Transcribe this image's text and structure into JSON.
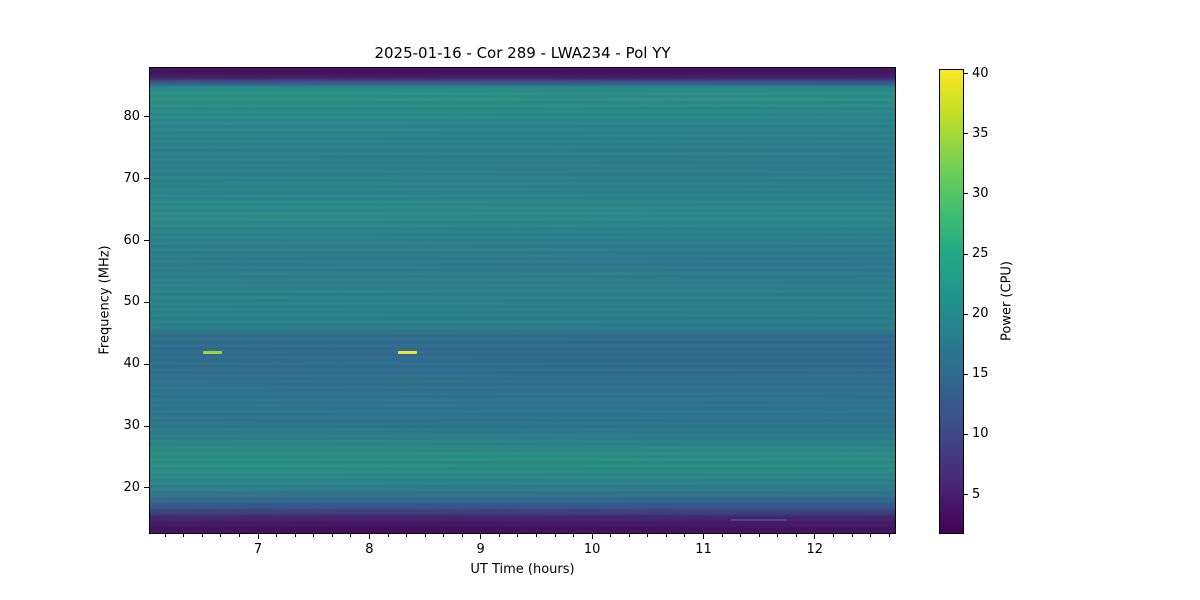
{
  "figure": {
    "title": "2025-01-16 - Cor 289 - LWA234 - Pol YY",
    "xlabel": "UT Time (hours)",
    "ylabel": "Frequency (MHz)",
    "colorbar_label": "Power (CPU)"
  },
  "chart_data": {
    "type": "heatmap",
    "title": "2025-01-16 - Cor 289 - LWA234 - Pol YY",
    "xlabel": "UT Time (hours)",
    "ylabel": "Frequency (MHz)",
    "colormap": "viridis",
    "x_range_hours": [
      6.03,
      12.72
    ],
    "y_range_mhz": [
      12.7,
      87.9
    ],
    "x_ticks": [
      7,
      8,
      9,
      10,
      11,
      12
    ],
    "x_minor_tick_interval_hours": 0.16667,
    "y_ticks": [
      20,
      30,
      40,
      50,
      60,
      70,
      80
    ],
    "grid": false,
    "colorbar": {
      "label": "Power (CPU)",
      "range": [
        1.8,
        40.3
      ],
      "ticks": [
        5,
        10,
        15,
        20,
        25,
        30,
        35,
        40
      ]
    },
    "colormap_stops": [
      {
        "t": 0.0,
        "c": "#440154"
      },
      {
        "t": 0.1,
        "c": "#482475"
      },
      {
        "t": 0.2,
        "c": "#414487"
      },
      {
        "t": 0.3,
        "c": "#355f8d"
      },
      {
        "t": 0.4,
        "c": "#2a788e"
      },
      {
        "t": 0.5,
        "c": "#21918c"
      },
      {
        "t": 0.6,
        "c": "#22a884"
      },
      {
        "t": 0.7,
        "c": "#44bf70"
      },
      {
        "t": 0.8,
        "c": "#7ad151"
      },
      {
        "t": 0.9,
        "c": "#bddf26"
      },
      {
        "t": 1.0,
        "c": "#fde725"
      }
    ],
    "frequency_profile": [
      {
        "freq_mhz": 87.9,
        "power": 2.2,
        "color": "#440b5c"
      },
      {
        "freq_mhz": 86.6,
        "power": 2.6,
        "color": "#461360"
      },
      {
        "freq_mhz": 85.9,
        "power": 6.5,
        "color": "#423c80"
      },
      {
        "freq_mhz": 85.2,
        "power": 15.0,
        "color": "#2f6f8e"
      },
      {
        "freq_mhz": 84.4,
        "power": 22.0,
        "color": "#2a9185"
      },
      {
        "freq_mhz": 82.6,
        "power": 21.6,
        "color": "#2b9085"
      },
      {
        "freq_mhz": 81.0,
        "power": 20.5,
        "color": "#2b8a88"
      },
      {
        "freq_mhz": 79.5,
        "power": 20.0,
        "color": "#2b8689"
      },
      {
        "freq_mhz": 76.5,
        "power": 19.4,
        "color": "#2c818b"
      },
      {
        "freq_mhz": 72.5,
        "power": 19.0,
        "color": "#2c7e8b"
      },
      {
        "freq_mhz": 68.0,
        "power": 19.6,
        "color": "#2c828a"
      },
      {
        "freq_mhz": 64.0,
        "power": 20.4,
        "color": "#2b8a87"
      },
      {
        "freq_mhz": 60.5,
        "power": 19.3,
        "color": "#2c808b"
      },
      {
        "freq_mhz": 56.0,
        "power": 18.8,
        "color": "#2d7b8c"
      },
      {
        "freq_mhz": 52.0,
        "power": 19.4,
        "color": "#2c818a"
      },
      {
        "freq_mhz": 48.5,
        "power": 19.2,
        "color": "#2b808a"
      },
      {
        "freq_mhz": 45.6,
        "power": 19.0,
        "color": "#2b7e89"
      },
      {
        "freq_mhz": 44.8,
        "power": 15.8,
        "color": "#2f6d8d"
      },
      {
        "freq_mhz": 42.0,
        "power": 15.2,
        "color": "#306a8e"
      },
      {
        "freq_mhz": 38.0,
        "power": 15.9,
        "color": "#2f6e8d"
      },
      {
        "freq_mhz": 33.5,
        "power": 16.8,
        "color": "#2e748c"
      },
      {
        "freq_mhz": 30.0,
        "power": 17.1,
        "color": "#2e768c"
      },
      {
        "freq_mhz": 27.2,
        "power": 19.8,
        "color": "#2b8386"
      },
      {
        "freq_mhz": 25.2,
        "power": 21.5,
        "color": "#2a8e84"
      },
      {
        "freq_mhz": 23.0,
        "power": 21.7,
        "color": "#2b8e85"
      },
      {
        "freq_mhz": 21.2,
        "power": 19.9,
        "color": "#2c8389"
      },
      {
        "freq_mhz": 20.0,
        "power": 18.9,
        "color": "#2d7f8a"
      },
      {
        "freq_mhz": 18.6,
        "power": 16.3,
        "color": "#30718d"
      },
      {
        "freq_mhz": 17.2,
        "power": 12.8,
        "color": "#345a8c"
      },
      {
        "freq_mhz": 16.1,
        "power": 8.0,
        "color": "#3c3e7c"
      },
      {
        "freq_mhz": 15.1,
        "power": 4.6,
        "color": "#44206a"
      },
      {
        "freq_mhz": 13.8,
        "power": 2.6,
        "color": "#450f5f"
      },
      {
        "freq_mhz": 12.7,
        "power": 2.2,
        "color": "#440a5c"
      }
    ],
    "bursts": [
      {
        "time_hours": 6.59,
        "duration_hours": 0.17,
        "freq_mhz": 41.9,
        "power": 33.5,
        "color": "#a6d434"
      },
      {
        "time_hours": 8.34,
        "duration_hours": 0.17,
        "freq_mhz": 41.9,
        "power": 38.0,
        "color": "#eae53a"
      }
    ],
    "faint_streak": {
      "time_start_hours": 11.25,
      "time_end_hours": 11.75,
      "freq_mhz": 14.9,
      "color": "rgba(85,110,185,0.45)"
    },
    "time_shading": {
      "stops": [
        {
          "pos": 0,
          "color": "rgba(40,150,132,0.05)"
        },
        {
          "pos": 28,
          "color": "rgba(0,0,0,0)"
        },
        {
          "pos": 72,
          "color": "rgba(40,95,150,0.06)"
        },
        {
          "pos": 100,
          "color": "rgba(40,95,150,0.08)"
        }
      ]
    }
  }
}
